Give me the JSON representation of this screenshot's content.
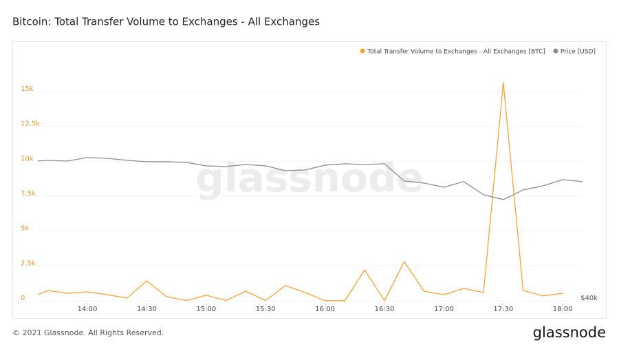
{
  "title": "Bitcoin: Total Transfer Volume to Exchanges - All Exchanges",
  "footer": "© 2021 Glassnode. All Rights Reserved.",
  "logo": "glassnode",
  "chart_data": {
    "type": "line",
    "watermark": "glassnode",
    "x": [
      "13:35",
      "13:40",
      "13:50",
      "14:00",
      "14:10",
      "14:20",
      "14:30",
      "14:40",
      "14:50",
      "15:00",
      "15:10",
      "15:20",
      "15:30",
      "15:40",
      "15:50",
      "16:00",
      "16:10",
      "16:20",
      "16:30",
      "16:40",
      "16:50",
      "17:00",
      "17:10",
      "17:20",
      "17:30",
      "17:40",
      "17:50",
      "18:00",
      "18:10"
    ],
    "xlim": [
      "13:35",
      "18:10"
    ],
    "xticks": [
      "14:00",
      "14:30",
      "15:00",
      "15:30",
      "16:00",
      "16:30",
      "17:00",
      "17:30",
      "18:00"
    ],
    "ylim": [
      0,
      16500
    ],
    "yticks": [
      {
        "value": 0,
        "label": "0"
      },
      {
        "value": 2500,
        "label": "2.5k"
      },
      {
        "value": 5000,
        "label": "5k"
      },
      {
        "value": 7500,
        "label": "7.5k"
      },
      {
        "value": 10000,
        "label": "10k"
      },
      {
        "value": 12500,
        "label": "12.5k"
      },
      {
        "value": 15000,
        "label": "15k"
      }
    ],
    "y2lim": [
      40000,
      67500
    ],
    "y2ticks": [
      {
        "value": 40000,
        "label": "$40k"
      }
    ],
    "grid": true,
    "legend": "top-right",
    "series": [
      {
        "name": "Total Transfer Volume to Exchanges - All Exchanges [BTC]",
        "color": "#f7a235",
        "values": [
          440,
          740,
          540,
          640,
          440,
          200,
          1430,
          300,
          20,
          400,
          20,
          690,
          20,
          1090,
          590,
          10,
          10,
          2220,
          10,
          2810,
          690,
          440,
          890,
          590,
          15640,
          740,
          350,
          540,
          null
        ]
      },
      {
        "name": "Price [USD]",
        "color": "#8c8c8c",
        "axis": "y2",
        "values": [
          56700,
          56780,
          56700,
          57110,
          57020,
          56780,
          56610,
          56610,
          56530,
          56120,
          56040,
          56280,
          56120,
          55540,
          55630,
          56200,
          56370,
          56280,
          56370,
          54310,
          54060,
          53570,
          54230,
          52670,
          52090,
          53240,
          53730,
          54470,
          54230
        ]
      }
    ]
  }
}
